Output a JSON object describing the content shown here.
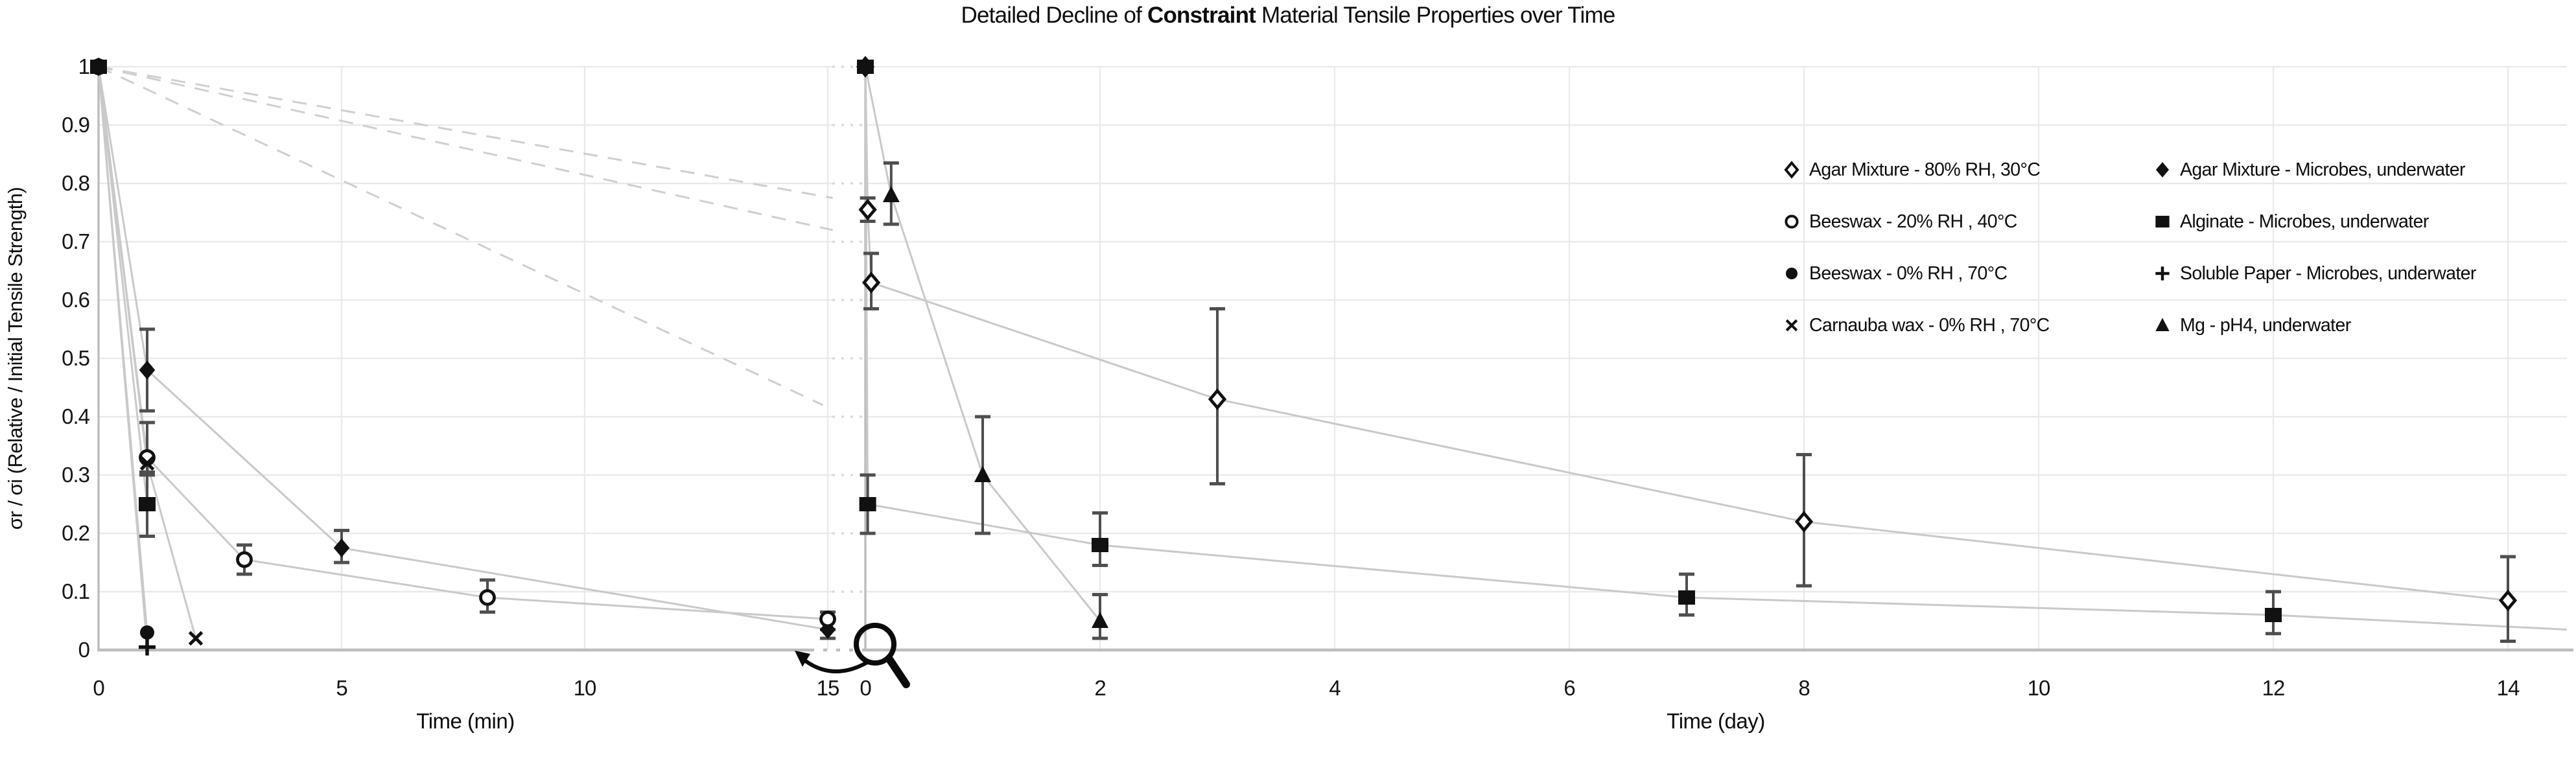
{
  "title": {
    "prefix": "Detailed Decline of ",
    "bold": "Constraint",
    "suffix": " Material Tensile Properties over Time"
  },
  "y_axis": {
    "label": "σr / σi (Relative / Initial Tensile Strength)",
    "ticks": [
      "1",
      "0.9",
      "0.8",
      "0.7",
      "0.6",
      "0.5",
      "0.4",
      "0.3",
      "0.2",
      "0.1",
      "0"
    ]
  },
  "legend": {
    "columns": [
      [
        {
          "marker": "diamond-open",
          "label": "Agar Mixture - 80% RH, 30°C"
        },
        {
          "marker": "circle-open",
          "label": "Beeswax - 20% RH , 40°C"
        },
        {
          "marker": "circle-filled",
          "label": "Beeswax - 0% RH , 70°C"
        },
        {
          "marker": "x",
          "label": "Carnauba wax - 0% RH , 70°C"
        }
      ],
      [
        {
          "marker": "diamond-filled",
          "label": "Agar Mixture - Microbes, underwater"
        },
        {
          "marker": "square-filled",
          "label": "Alginate - Microbes, underwater"
        },
        {
          "marker": "plus",
          "label": "Soluble Paper - Microbes, underwater"
        },
        {
          "marker": "triangle-filled",
          "label": "Mg - pH4, underwater"
        }
      ]
    ]
  },
  "icons": {
    "seam": "magnifier-icon",
    "seam_arrow": "curved-arrow-left-icon"
  },
  "colors": {
    "marker": "#111111",
    "series_line": "#c9c9c9",
    "dashed_line": "#cfcfcf",
    "error_bar": "#4f4f4f",
    "grid": "#eaeaea",
    "axis": "#bdbdbd",
    "text": "#151515"
  },
  "chart_data": {
    "type": "line",
    "title": "Detailed Decline of Constraint Material Tensile Properties over Time",
    "ylabel": "σr / σi (Relative / Initial Tensile Strength)",
    "ylim": [
      0,
      1
    ],
    "grid": true,
    "legend_position": "upper right",
    "panels": [
      {
        "id": "minutes",
        "xlabel": "Time (min)",
        "xlim": [
          0,
          15.1
        ],
        "xticks": [
          0,
          5,
          10,
          15
        ],
        "series": [
          {
            "name": "Agar Mixture - Microbes, underwater",
            "marker": "diamond-filled",
            "points": [
              [
                0,
                1,
                null,
                null
              ],
              [
                1,
                0.48,
                0.41,
                0.55
              ],
              [
                5,
                0.175,
                0.15,
                0.205
              ],
              [
                15,
                0.035,
                0.02,
                0.05
              ]
            ]
          },
          {
            "name": "Beeswax - 20% RH , 40°C",
            "marker": "circle-open",
            "points": [
              [
                0,
                1,
                null,
                null
              ],
              [
                1,
                0.33,
                0.3,
                0.39
              ],
              [
                3,
                0.155,
                0.13,
                0.18
              ],
              [
                8,
                0.09,
                0.065,
                0.12
              ],
              [
                15,
                0.053,
                0.035,
                0.065
              ]
            ]
          },
          {
            "name": "Beeswax - 0% RH , 70°C",
            "marker": "circle-filled",
            "points": [
              [
                0,
                1,
                null,
                null
              ],
              [
                1,
                0.03,
                null,
                null
              ]
            ]
          },
          {
            "name": "Carnauba wax - 0% RH , 70°C",
            "marker": "x",
            "points": [
              [
                0,
                1,
                null,
                null
              ],
              [
                1,
                0.32,
                null,
                null
              ],
              [
                2,
                0.02,
                null,
                null
              ]
            ]
          },
          {
            "name": "Alginate - Microbes, underwater",
            "marker": "square-filled",
            "points": [
              [
                0,
                1,
                null,
                null
              ],
              [
                1,
                0.25,
                0.195,
                0.305
              ]
            ]
          },
          {
            "name": "Soluble Paper - Microbes, underwater",
            "marker": "plus",
            "points": [
              [
                0,
                1,
                null,
                null
              ],
              [
                1,
                0.005,
                null,
                null
              ]
            ]
          }
        ],
        "dashed_connectors": [
          [
            [
              0,
              1
            ],
            [
              15.1,
              0.775
            ]
          ],
          [
            [
              0,
              1
            ],
            [
              15.1,
              0.72
            ]
          ],
          [
            [
              0,
              1
            ],
            [
              14.9,
              0.42
            ]
          ]
        ]
      },
      {
        "id": "days",
        "xlabel": "Time (day)",
        "xlim": [
          0,
          14.5
        ],
        "xticks": [
          0,
          2,
          4,
          6,
          8,
          10,
          12,
          14
        ],
        "series": [
          {
            "name": "Agar Mixture - 80% RH, 30°C",
            "marker": "diamond-open",
            "points": [
              [
                0,
                1,
                null,
                null
              ],
              [
                0.02,
                0.755,
                0.735,
                0.775
              ],
              [
                0.05,
                0.63,
                0.585,
                0.68
              ],
              [
                3,
                0.43,
                0.285,
                0.585
              ],
              [
                8,
                0.22,
                0.11,
                0.335
              ],
              [
                14,
                0.085,
                0.015,
                0.16
              ]
            ]
          },
          {
            "name": "Mg - pH4, underwater",
            "marker": "triangle-filled",
            "points": [
              [
                0,
                1,
                null,
                null
              ],
              [
                0.22,
                0.78,
                0.73,
                0.835
              ],
              [
                1,
                0.3,
                0.2,
                0.4
              ],
              [
                2,
                0.05,
                0.02,
                0.095
              ]
            ]
          },
          {
            "name": "Alginate - Microbes, underwater",
            "marker": "square-filled",
            "points": [
              [
                0,
                1,
                null,
                null
              ],
              [
                0.02,
                0.25,
                0.2,
                0.3
              ],
              [
                2,
                0.18,
                0.145,
                0.235
              ],
              [
                7,
                0.09,
                0.06,
                0.13
              ],
              [
                12,
                0.06,
                0.028,
                0.1
              ]
            ],
            "extend_to": [
              14.5,
              0.035
            ]
          },
          {
            "name": "Soluble Paper - Microbes, underwater",
            "marker": "plus",
            "points": [
              [
                0,
                1,
                null,
                null
              ]
            ]
          }
        ],
        "dashed_connectors": []
      }
    ]
  }
}
